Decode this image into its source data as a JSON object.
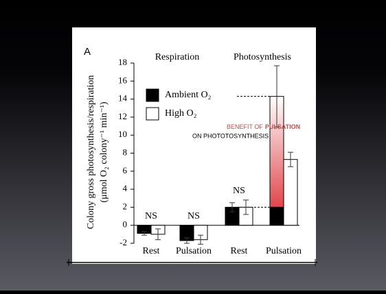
{
  "chart_data": {
    "type": "bar",
    "panel_label": "A",
    "group_labels": [
      "Respiration",
      "Photosynthesis"
    ],
    "ylabel": [
      "Colony gross photosynthesis/respiration",
      "(μmol O₂ colony⁻¹ min⁻¹)"
    ],
    "categories": [
      "Rest",
      "Pulsation",
      "Rest",
      "Pulsation"
    ],
    "series": [
      {
        "name": "Ambient O₂",
        "color": "#000000",
        "values": [
          -0.9,
          -1.7,
          2.0,
          14.3
        ],
        "errors": [
          0.2,
          0.3,
          0.5,
          3.4
        ]
      },
      {
        "name": "High O₂",
        "color": "#ffffff",
        "values": [
          -1.0,
          -1.6,
          2.0,
          7.3
        ],
        "errors": [
          0.6,
          0.5,
          0.8,
          0.8
        ]
      }
    ],
    "significance": [
      "NS",
      "NS",
      "NS"
    ],
    "annotation": {
      "lines": [
        [
          "BENEFIT OF",
          "PULSATION"
        ],
        [
          "ON PHOTOTOSYNTHESIS"
        ]
      ],
      "color": "#c0504d"
    },
    "ylim": [
      -2,
      18
    ],
    "yticks": [
      -2,
      0,
      2,
      4,
      6,
      8,
      10,
      12,
      14,
      16,
      18
    ]
  }
}
